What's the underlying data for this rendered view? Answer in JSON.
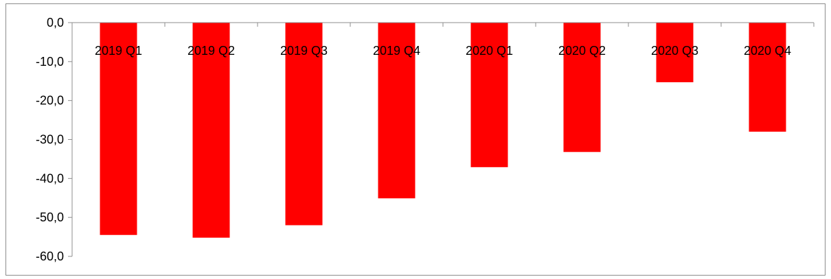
{
  "chart_data": {
    "type": "bar",
    "title": "",
    "xlabel": "",
    "ylabel": "",
    "categories": [
      "2019 Q1",
      "2019 Q2",
      "2019 Q3",
      "2019 Q4",
      "2020 Q1",
      "2020 Q2",
      "2020 Q3",
      "2020 Q4"
    ],
    "series": [
      {
        "values": [
          -54.5,
          -55.2,
          -52.0,
          -45.1,
          -37.1,
          -33.2,
          -15.3,
          -28.0
        ],
        "color": "#ff0000"
      }
    ],
    "ylim": [
      -60,
      0
    ],
    "yticks": [
      0,
      -10,
      -20,
      -30,
      -40,
      -50,
      -60
    ],
    "ytick_labels": [
      "0,0",
      "-10,0",
      "-20,0",
      "-30,0",
      "-40,0",
      "-50,0",
      "-60,0"
    ],
    "grid": false,
    "legend": "none"
  }
}
